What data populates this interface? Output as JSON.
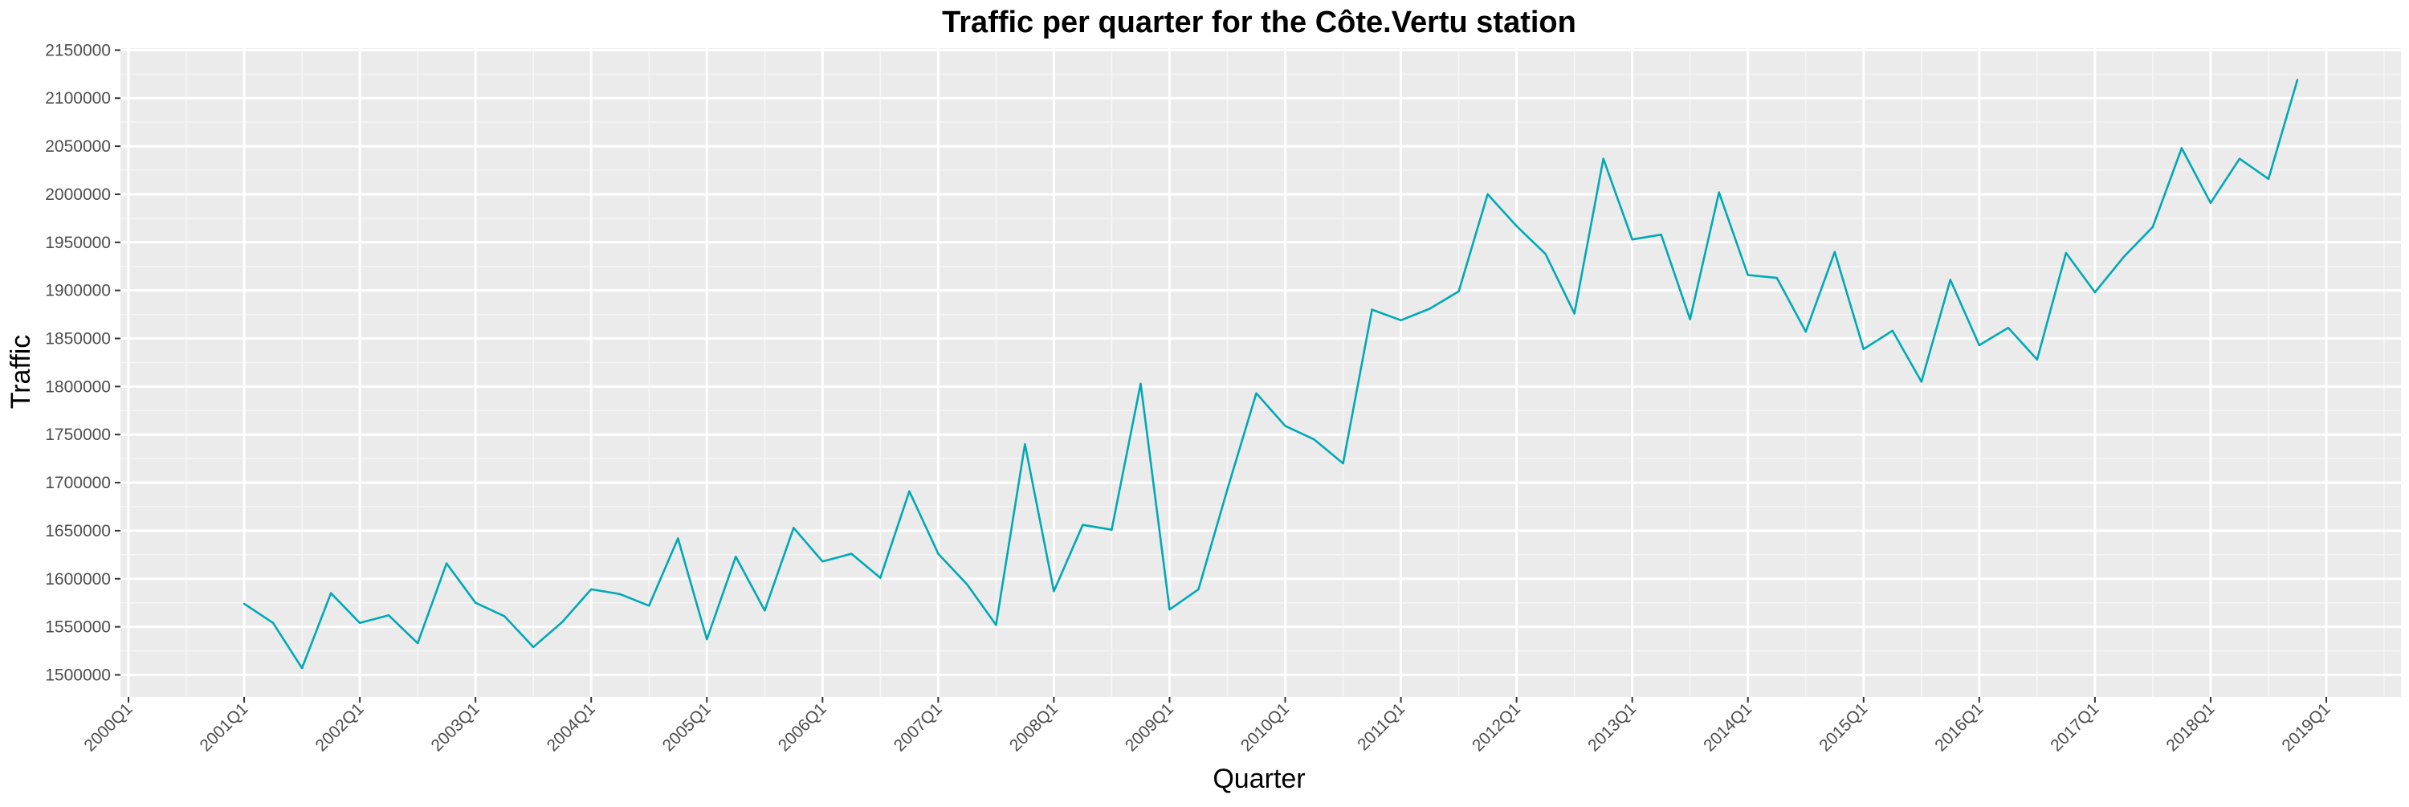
{
  "chart_data": {
    "type": "line",
    "title": "Traffic per quarter for the Côte.Vertu station",
    "xlabel": "Quarter",
    "ylabel": "Traffic",
    "x_tick_labels": [
      "2000Q1",
      "2001Q1",
      "2002Q1",
      "2003Q1",
      "2004Q1",
      "2005Q1",
      "2006Q1",
      "2007Q1",
      "2008Q1",
      "2009Q1",
      "2010Q1",
      "2011Q1",
      "2012Q1",
      "2013Q1",
      "2014Q1",
      "2015Q1",
      "2016Q1",
      "2017Q1",
      "2018Q1",
      "2019Q1"
    ],
    "y_ticks": [
      1500000,
      1550000,
      1600000,
      1650000,
      1700000,
      1750000,
      1800000,
      1850000,
      1900000,
      1950000,
      2000000,
      2050000,
      2100000,
      2150000
    ],
    "y_tick_labels": [
      "1500000",
      "1550000",
      "1600000",
      "1650000",
      "1700000",
      "1750000",
      "1800000",
      "1850000",
      "1900000",
      "1950000",
      "2000000",
      "2050000",
      "2100000",
      "2150000"
    ],
    "ylim": [
      1477000,
      2152000
    ],
    "x_first_quarter": "2000Q1",
    "x_last_quarter": "2019Q1",
    "grid": true,
    "series": [
      {
        "color": "#00A9B5",
        "x": [
          "2001Q1",
          "2001Q2",
          "2001Q3",
          "2001Q4",
          "2002Q1",
          "2002Q2",
          "2002Q3",
          "2002Q4",
          "2003Q1",
          "2003Q2",
          "2003Q3",
          "2003Q4",
          "2004Q1",
          "2004Q2",
          "2004Q3",
          "2004Q4",
          "2005Q1",
          "2005Q2",
          "2005Q3",
          "2005Q4",
          "2006Q1",
          "2006Q2",
          "2006Q3",
          "2006Q4",
          "2007Q1",
          "2007Q2",
          "2007Q3",
          "2007Q4",
          "2008Q1",
          "2008Q2",
          "2008Q3",
          "2008Q4",
          "2009Q1",
          "2009Q2",
          "2009Q3",
          "2009Q4",
          "2010Q1",
          "2010Q2",
          "2010Q3",
          "2010Q4",
          "2011Q1",
          "2011Q2",
          "2011Q3",
          "2011Q4",
          "2012Q1",
          "2012Q2",
          "2012Q3",
          "2012Q4",
          "2013Q1",
          "2013Q2",
          "2013Q3",
          "2013Q4",
          "2014Q1",
          "2014Q2",
          "2014Q3",
          "2014Q4",
          "2015Q1",
          "2015Q2",
          "2015Q3",
          "2015Q4",
          "2016Q1",
          "2016Q2",
          "2016Q3",
          "2016Q4",
          "2017Q1",
          "2017Q2",
          "2017Q3",
          "2017Q4",
          "2018Q1",
          "2018Q2",
          "2018Q3",
          "2018Q4"
        ],
        "values": [
          1574000,
          1554000,
          1507000,
          1585000,
          1554000,
          1562000,
          1533000,
          1616000,
          1575000,
          1561000,
          1529000,
          1555000,
          1589000,
          1584000,
          1572000,
          1642000,
          1537000,
          1623000,
          1567000,
          1653000,
          1618000,
          1626000,
          1601000,
          1691000,
          1626000,
          1594000,
          1552000,
          1740000,
          1587000,
          1656000,
          1651000,
          1803000,
          1568000,
          1589000,
          1693000,
          1793000,
          1759000,
          1745000,
          1720000,
          1880000,
          1869000,
          1881000,
          1899000,
          2000000,
          1967000,
          1938000,
          1876000,
          2037000,
          1953000,
          1958000,
          1870000,
          2002000,
          1916000,
          1913000,
          1857000,
          1940000,
          1839000,
          1858000,
          1805000,
          1911000,
          1843000,
          1861000,
          1828000,
          1939000,
          1898000,
          1935000,
          1966000,
          2048000,
          1991000,
          2037000,
          2016000,
          2119000
        ]
      }
    ]
  }
}
